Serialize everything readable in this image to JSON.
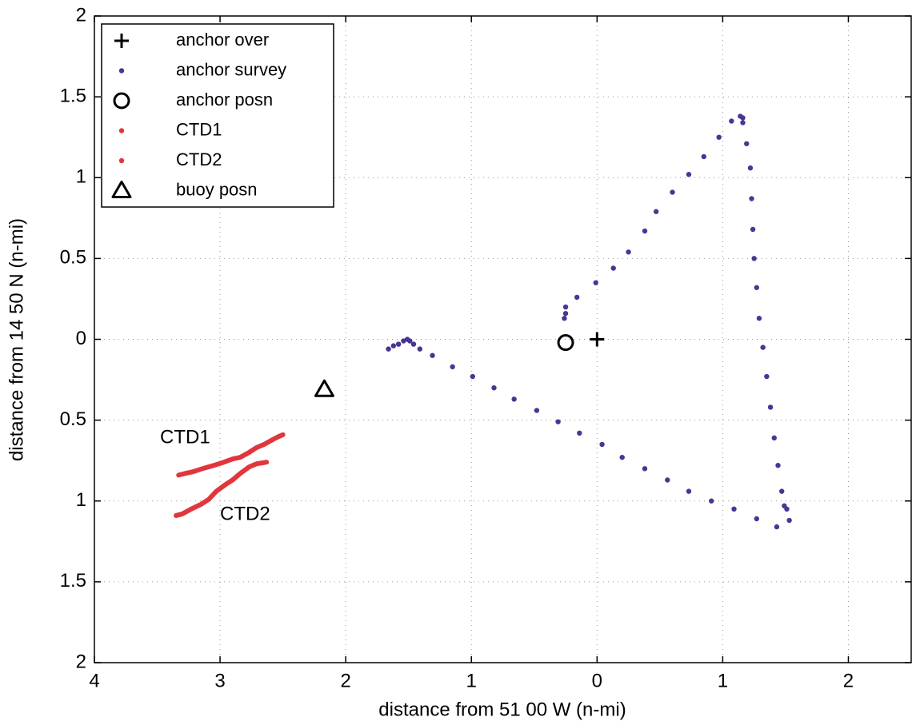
{
  "chart_data": {
    "type": "scatter",
    "xlabel": "distance from 51 00 W (n-mi)",
    "ylabel": "distance from 14 50 N (n-mi)",
    "xlim": [
      -4,
      2.5
    ],
    "ylim": [
      -2,
      2
    ],
    "xticks": [
      {
        "value": -4,
        "label": "4"
      },
      {
        "value": -3,
        "label": "3"
      },
      {
        "value": -2,
        "label": "2"
      },
      {
        "value": -1,
        "label": "1"
      },
      0,
      1,
      2
    ],
    "yticks": [
      {
        "value": -2,
        "label": "2"
      },
      {
        "value": -1.5,
        "label": "1.5"
      },
      {
        "value": -1,
        "label": "1"
      },
      {
        "value": -0.5,
        "label": "0.5"
      },
      0,
      0.5,
      1,
      1.5,
      2
    ],
    "grid": true,
    "legend": "upper left",
    "annotations": [
      "CTD1",
      "CTD2"
    ],
    "series": [
      {
        "name": "anchor over",
        "marker": "+",
        "color": "#000000",
        "x": [
          0
        ],
        "y": [
          0
        ]
      },
      {
        "name": "anchor survey",
        "marker": ".",
        "color": "#4b3494",
        "x": [
          -1.66,
          -1.62,
          -1.58,
          -1.54,
          -1.51,
          -1.49,
          -1.46,
          -1.41,
          -1.31,
          -1.15,
          -0.99,
          -0.82,
          -0.66,
          -0.48,
          -0.31,
          -0.14,
          0.04,
          0.2,
          0.38,
          0.56,
          0.73,
          0.91,
          1.09,
          1.27,
          1.43,
          1.53,
          1.51,
          1.49,
          1.47,
          1.44,
          1.41,
          1.38,
          1.35,
          1.32,
          1.29,
          1.27,
          1.25,
          1.24,
          1.23,
          1.22,
          1.19,
          1.16,
          1.16,
          1.14,
          1.07,
          0.97,
          0.85,
          0.73,
          0.6,
          0.47,
          0.38,
          0.25,
          0.13,
          -0.01,
          -0.16,
          -0.25,
          -0.25,
          -0.26
        ],
        "y": [
          -0.06,
          -0.04,
          -0.03,
          -0.01,
          0,
          -0.01,
          -0.03,
          -0.06,
          -0.1,
          -0.17,
          -0.23,
          -0.3,
          -0.37,
          -0.44,
          -0.51,
          -0.58,
          -0.65,
          -0.73,
          -0.8,
          -0.87,
          -0.94,
          -1,
          -1.05,
          -1.11,
          -1.16,
          -1.12,
          -1.05,
          -1.03,
          -0.94,
          -0.78,
          -0.61,
          -0.42,
          -0.23,
          -0.05,
          0.13,
          0.32,
          0.5,
          0.68,
          0.87,
          1.06,
          1.21,
          1.34,
          1.37,
          1.38,
          1.35,
          1.25,
          1.13,
          1.02,
          0.91,
          0.79,
          0.67,
          0.54,
          0.44,
          0.35,
          0.26,
          0.2,
          0.16,
          0.13
        ]
      },
      {
        "name": "anchor posn",
        "marker": "o",
        "color": "#000000",
        "x": [
          -0.25
        ],
        "y": [
          -0.02
        ]
      },
      {
        "name": "CTD1",
        "marker": ".",
        "line": true,
        "color": "#e0373c",
        "x": [
          -3.33,
          -3.28,
          -3.22,
          -3.14,
          -3.05,
          -2.97,
          -2.9,
          -2.84,
          -2.77,
          -2.71,
          -2.65,
          -2.58,
          -2.53,
          -2.5
        ],
        "y": [
          -0.84,
          -0.83,
          -0.82,
          -0.8,
          -0.78,
          -0.76,
          -0.74,
          -0.73,
          -0.7,
          -0.67,
          -0.65,
          -0.62,
          -0.6,
          -0.59
        ]
      },
      {
        "name": "CTD2",
        "marker": ".",
        "line": true,
        "color": "#e0373c",
        "x": [
          -3.35,
          -3.3,
          -3.23,
          -3.15,
          -3.09,
          -3.03,
          -2.96,
          -2.9,
          -2.84,
          -2.77,
          -2.71,
          -2.63
        ],
        "y": [
          -1.09,
          -1.08,
          -1.05,
          -1.02,
          -0.99,
          -0.94,
          -0.9,
          -0.87,
          -0.83,
          -0.79,
          -0.77,
          -0.76
        ]
      },
      {
        "name": "buoy posn",
        "marker": "^",
        "color": "#000000",
        "x": [
          -2.17
        ],
        "y": [
          -0.31
        ]
      }
    ]
  }
}
